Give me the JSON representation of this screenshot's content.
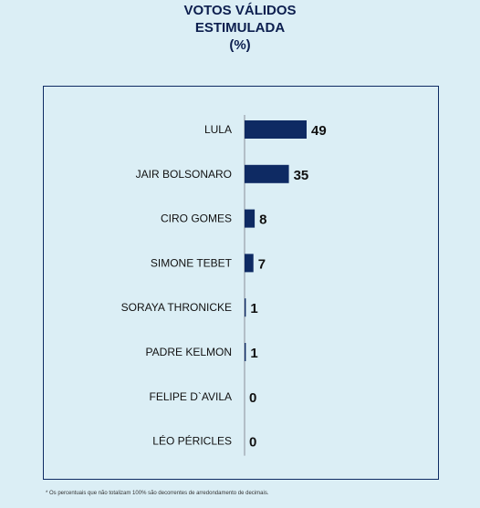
{
  "header": {
    "line1": "VOTOS VÁLIDOS",
    "line2": "ESTIMULADA",
    "line3": "(%)"
  },
  "footnote": "* Os percentuais que não totalizam 100% são decorrentes de arredondamento de decimais.",
  "chart_data": {
    "type": "bar",
    "orientation": "horizontal",
    "title": "VOTOS VÁLIDOS ESTIMULADA (%)",
    "categories": [
      "LULA",
      "JAIR BOLSONARO",
      "CIRO GOMES",
      "SIMONE TEBET",
      "SORAYA THRONICKE",
      "PADRE KELMON",
      "FELIPE D`AVILA",
      "LÉO PÉRICLES"
    ],
    "values": [
      49,
      35,
      8,
      7,
      1,
      1,
      0,
      0
    ],
    "bar_color": "#0e2a63",
    "grid": false,
    "legend": "none"
  }
}
